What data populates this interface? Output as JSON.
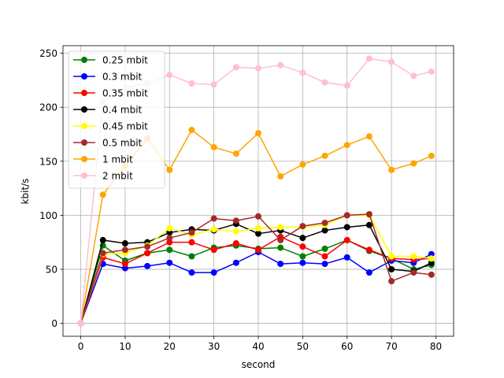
{
  "chart_data": {
    "type": "line",
    "xlabel": "second",
    "ylabel": "kbit/s",
    "xlim": [
      -4,
      84
    ],
    "ylim": [
      -12,
      257
    ],
    "xticks": [
      0,
      10,
      20,
      30,
      40,
      50,
      60,
      70,
      80
    ],
    "yticks": [
      0,
      50,
      100,
      150,
      200,
      250
    ],
    "grid": true,
    "legend_position": "top-left",
    "x": [
      0,
      5,
      10,
      15,
      20,
      25,
      30,
      35,
      40,
      45,
      50,
      55,
      60,
      65,
      70,
      75,
      79
    ],
    "series": [
      {
        "name": "0.25 mbit",
        "color": "#008000",
        "values": [
          0,
          72,
          58,
          65,
          68,
          62,
          70,
          72,
          69,
          70,
          62,
          69,
          77,
          67,
          60,
          50,
          54
        ]
      },
      {
        "name": "0.3 mbit",
        "color": "#0000ff",
        "values": [
          0,
          55,
          51,
          53,
          56,
          47,
          47,
          56,
          66,
          55,
          56,
          55,
          61,
          47,
          58,
          56,
          64
        ]
      },
      {
        "name": "0.35 mbit",
        "color": "#ff0000",
        "values": [
          0,
          61,
          55,
          65,
          75,
          75,
          68,
          74,
          68,
          80,
          71,
          62,
          77,
          68,
          60,
          59,
          60
        ]
      },
      {
        "name": "0.4 mbit",
        "color": "#000000",
        "values": [
          0,
          77,
          74,
          75,
          84,
          87,
          86,
          92,
          83,
          86,
          79,
          86,
          89,
          91,
          50,
          48,
          56
        ]
      },
      {
        "name": "0.45 mbit",
        "color": "#ffff00",
        "values": [
          0,
          64,
          65,
          72,
          88,
          82,
          87,
          85,
          88,
          89,
          89,
          91,
          100,
          100,
          62,
          62,
          60
        ]
      },
      {
        "name": "0.5 mbit",
        "color": "#a52a2a",
        "values": [
          0,
          65,
          68,
          71,
          79,
          84,
          97,
          95,
          99,
          77,
          90,
          93,
          100,
          101,
          39,
          47,
          45
        ]
      },
      {
        "name": "1 mbit",
        "color": "#ffa500",
        "values": [
          0,
          119,
          146,
          171,
          142,
          179,
          163,
          157,
          176,
          136,
          147,
          155,
          165,
          173,
          142,
          148,
          155
        ]
      },
      {
        "name": "2 mbit",
        "color": "#ffc0cb",
        "values": [
          0,
          205,
          218,
          222,
          230,
          222,
          221,
          237,
          236,
          239,
          232,
          223,
          220,
          245,
          242,
          229,
          233
        ]
      }
    ]
  }
}
